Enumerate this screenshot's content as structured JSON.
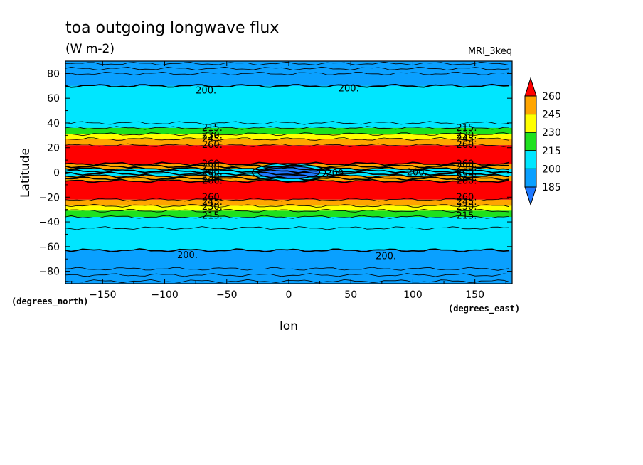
{
  "chart_data": {
    "type": "heatmap",
    "title": "toa outgoing longwave flux",
    "subtitle": "(W m-2)",
    "model": "MRI_3keq",
    "xlabel": "lon",
    "ylabel": "Latitude",
    "x_units": "(degrees_east)",
    "y_units": "(degrees_north)",
    "xlim": [
      -180,
      180
    ],
    "ylim": [
      -90,
      90
    ],
    "xticks": [
      -150,
      -100,
      -50,
      0,
      50,
      100,
      150
    ],
    "xtick_labels": [
      "−150",
      "−100",
      "−50",
      "0",
      "50",
      "100",
      "150"
    ],
    "yticks": [
      80,
      60,
      40,
      20,
      0,
      -20,
      -40,
      -60,
      -80
    ],
    "ytick_labels": [
      "80",
      "60",
      "40",
      "20",
      "0",
      "−20",
      "−40",
      "−60",
      "−80"
    ],
    "levels": [
      185,
      200,
      215,
      230,
      245,
      260
    ],
    "level_labels": [
      "185",
      "200",
      "215",
      "230",
      "245",
      "260"
    ],
    "colors": [
      "#1e78ff",
      "#0aa0ff",
      "#00e6ff",
      "#1ee11e",
      "#ffff00",
      "#ffa500",
      "#ff0000"
    ],
    "bands": [
      {
        "lat": [
          88,
          70
        ],
        "color": "#0aa0ff"
      },
      {
        "lat": [
          70,
          36
        ],
        "color": "#00e6ff"
      },
      {
        "lat": [
          36,
          31
        ],
        "color": "#1ee11e"
      },
      {
        "lat": [
          31,
          27
        ],
        "color": "#ffff00"
      },
      {
        "lat": [
          27,
          22
        ],
        "color": "#ffa500"
      },
      {
        "lat": [
          22,
          7
        ],
        "color": "#ff0000"
      },
      {
        "lat": [
          7,
          3
        ],
        "color": "#ffa500"
      },
      {
        "lat": [
          3,
          -3
        ],
        "color": "#00e6ff"
      },
      {
        "lat": [
          -3,
          -7
        ],
        "color": "#ffa500"
      },
      {
        "lat": [
          -7,
          -22
        ],
        "color": "#ff0000"
      },
      {
        "lat": [
          -22,
          -27
        ],
        "color": "#ffa500"
      },
      {
        "lat": [
          -27,
          -31
        ],
        "color": "#ffff00"
      },
      {
        "lat": [
          -31,
          -36
        ],
        "color": "#1ee11e"
      },
      {
        "lat": [
          -36,
          -63
        ],
        "color": "#00e6ff"
      },
      {
        "lat": [
          -63,
          -88
        ],
        "color": "#0aa0ff"
      }
    ],
    "contour_lines_lat": [
      88,
      84,
      80,
      70,
      40,
      36,
      31,
      27,
      22,
      7,
      5,
      3,
      1,
      -1,
      -3,
      -5,
      -7,
      -22,
      -27,
      -31,
      -36,
      -45,
      -63,
      -78,
      -83,
      -88
    ],
    "deep_blob": {
      "lon": [
        -25,
        25
      ],
      "lat": [
        -5,
        5
      ],
      "color": "#1e78ff"
    },
    "contour_labels": [
      {
        "text": "200.",
        "lon": -75,
        "lat": 66
      },
      {
        "text": "200.",
        "lon": 40,
        "lat": 68
      },
      {
        "text": "215.",
        "lon": -70,
        "lat": 36
      },
      {
        "text": "230.",
        "lon": -70,
        "lat": 30
      },
      {
        "text": "245.",
        "lon": -70,
        "lat": 27
      },
      {
        "text": "260.",
        "lon": -70,
        "lat": 22
      },
      {
        "text": "215.",
        "lon": 135,
        "lat": 36
      },
      {
        "text": "230.",
        "lon": 135,
        "lat": 30
      },
      {
        "text": "245.",
        "lon": 135,
        "lat": 27
      },
      {
        "text": "260.",
        "lon": 135,
        "lat": 22
      },
      {
        "text": "260.",
        "lon": -70,
        "lat": 7
      },
      {
        "text": "230.",
        "lon": -70,
        "lat": 4
      },
      {
        "text": "200.",
        "lon": -70,
        "lat": 0
      },
      {
        "text": "230.",
        "lon": -70,
        "lat": -4
      },
      {
        "text": "260.",
        "lon": -70,
        "lat": -7
      },
      {
        "text": "260.",
        "lon": 135,
        "lat": 7
      },
      {
        "text": "230.",
        "lon": 135,
        "lat": 4
      },
      {
        "text": "200.",
        "lon": 135,
        "lat": 0
      },
      {
        "text": "230.",
        "lon": 135,
        "lat": -4
      },
      {
        "text": "260.",
        "lon": 135,
        "lat": -7
      },
      {
        "text": "200.",
        "lon": 30,
        "lat": -1
      },
      {
        "text": "200.",
        "lon": 95,
        "lat": 0
      },
      {
        "text": "260.",
        "lon": -70,
        "lat": -20
      },
      {
        "text": "245.",
        "lon": -70,
        "lat": -24
      },
      {
        "text": "230.",
        "lon": -70,
        "lat": -28
      },
      {
        "text": "215.",
        "lon": -70,
        "lat": -35
      },
      {
        "text": "260.",
        "lon": 135,
        "lat": -20
      },
      {
        "text": "245.",
        "lon": 135,
        "lat": -24
      },
      {
        "text": "230.",
        "lon": 135,
        "lat": -28
      },
      {
        "text": "215.",
        "lon": 135,
        "lat": -35
      },
      {
        "text": "200.",
        "lon": -90,
        "lat": -67
      },
      {
        "text": "200.",
        "lon": 70,
        "lat": -68
      }
    ]
  }
}
